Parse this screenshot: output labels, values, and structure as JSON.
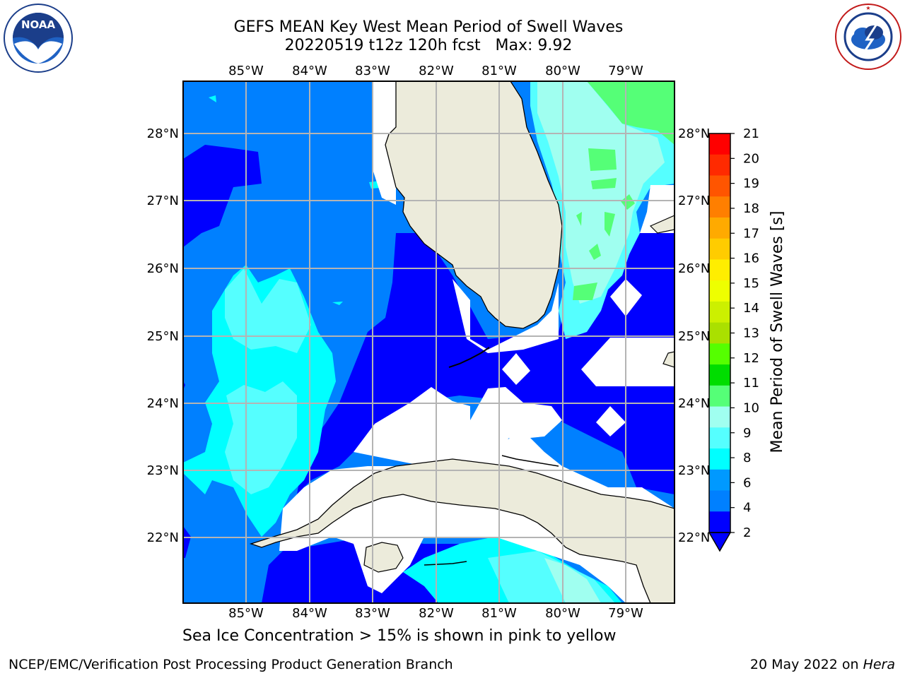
{
  "header": {
    "title_line1": "GEFS MEAN Key West Mean Period of Swell Waves",
    "title_line2": "20220519 t12z 120h fcst   Max: 9.92"
  },
  "logos": {
    "left": {
      "text": "NOAA",
      "ring_text": "NATIONAL OCEANIC AND ATMOSPHERIC ADMINISTRATION · U.S. DEPARTMENT OF COMMERCE"
    },
    "right": {
      "ring_text": "NATIONAL WEATHER SERVICE"
    }
  },
  "map": {
    "longitude_labels": [
      "85°W",
      "84°W",
      "83°W",
      "82°W",
      "81°W",
      "80°W",
      "79°W"
    ],
    "latitude_labels": [
      "28°N",
      "27°N",
      "26°N",
      "25°N",
      "24°N",
      "23°N",
      "22°N"
    ],
    "colors": {
      "land": "#ecebdb",
      "masked": "#ffffff",
      "grid": "#b4b4b4",
      "coast": "#000000"
    }
  },
  "colorbar": {
    "label": "Mean Period of Swell Waves [s]",
    "ticks": [
      "21",
      "20",
      "19",
      "18",
      "17",
      "16",
      "15",
      "14",
      "13",
      "12",
      "11",
      "10",
      "9",
      "8",
      "6",
      "4",
      "2"
    ],
    "colors": [
      "#ff0000",
      "#ff2a00",
      "#ff5500",
      "#ff7f00",
      "#ffaa00",
      "#ffcc00",
      "#ffee00",
      "#eeff00",
      "#ccf000",
      "#aae000",
      "#55ff00",
      "#00dd00",
      "#55ff77",
      "#a0fff0",
      "#55ffff",
      "#00ffff",
      "#0099ff",
      "#0080ff",
      "#0000ff"
    ],
    "under_color": "#0000ff"
  },
  "caption": "Sea Ice Concentration > 15% is shown in pink to yellow",
  "footer": {
    "left": "NCEP/EMC/Verification Post Processing Product Generation Branch",
    "right_prefix": "20 May 2022 on ",
    "right_host": "Hera"
  }
}
